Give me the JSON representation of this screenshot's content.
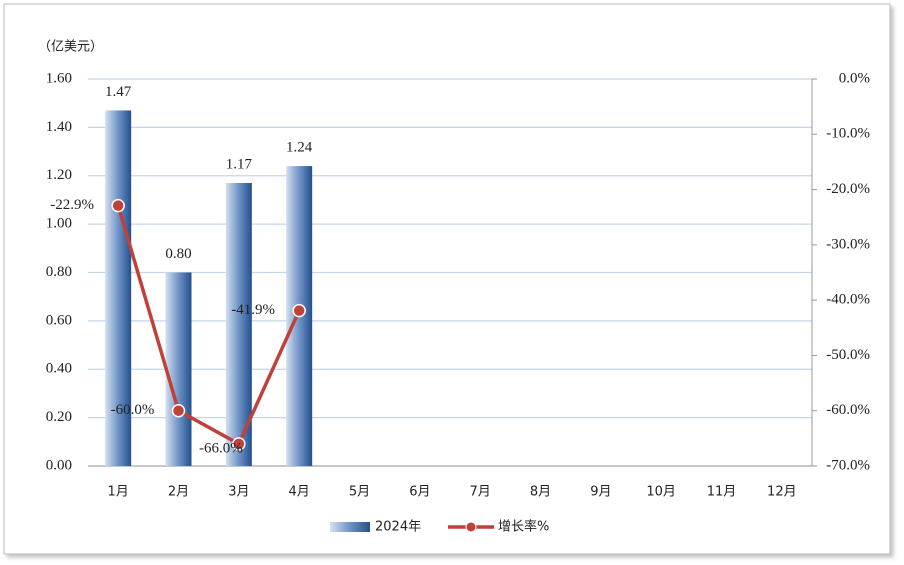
{
  "chart_data": {
    "type": "bar",
    "unit_label": "（亿美元）",
    "categories": [
      "1月",
      "2月",
      "3月",
      "4月",
      "5月",
      "6月",
      "7月",
      "8月",
      "9月",
      "10月",
      "11月",
      "12月"
    ],
    "series": [
      {
        "name": "2024年",
        "type": "bar",
        "color": "#2e5a9a",
        "values": [
          1.47,
          0.8,
          1.17,
          1.24,
          null,
          null,
          null,
          null,
          null,
          null,
          null,
          null
        ],
        "value_labels": [
          "1.47",
          "0.80",
          "1.17",
          "1.24",
          null,
          null,
          null,
          null,
          null,
          null,
          null,
          null
        ]
      },
      {
        "name": "增长率%",
        "type": "line",
        "axis": "y2",
        "color": "#c0403a",
        "values": [
          -22.9,
          -60.0,
          -66.0,
          -41.9,
          null,
          null,
          null,
          null,
          null,
          null,
          null,
          null
        ],
        "value_labels": [
          "-22.9%",
          "-60.0%",
          "-66.0%",
          "-41.9%",
          null,
          null,
          null,
          null,
          null,
          null,
          null,
          null
        ]
      }
    ],
    "ylim": [
      0,
      1.6
    ],
    "yticks": [
      {
        "value": 0,
        "label": "0.00"
      },
      {
        "value": 0.2,
        "label": "0.20"
      },
      {
        "value": 0.4,
        "label": "0.40"
      },
      {
        "value": 0.6,
        "label": "0.60"
      },
      {
        "value": 0.8,
        "label": "0.80"
      },
      {
        "value": 1.0,
        "label": "1.00"
      },
      {
        "value": 1.2,
        "label": "1.20"
      },
      {
        "value": 1.4,
        "label": "1.40"
      },
      {
        "value": 1.6,
        "label": "1.60"
      }
    ],
    "y2lim": [
      -70,
      0
    ],
    "y2ticks": [
      {
        "value": 0,
        "label": "0.0%"
      },
      {
        "value": -10,
        "label": "-10.0%"
      },
      {
        "value": -20,
        "label": "-20.0%"
      },
      {
        "value": -30,
        "label": "-30.0%"
      },
      {
        "value": -40,
        "label": "-40.0%"
      },
      {
        "value": -50,
        "label": "-50.0%"
      },
      {
        "value": -60,
        "label": "-60.0%"
      },
      {
        "value": -70,
        "label": "-70.0%"
      }
    ],
    "grid": true
  }
}
